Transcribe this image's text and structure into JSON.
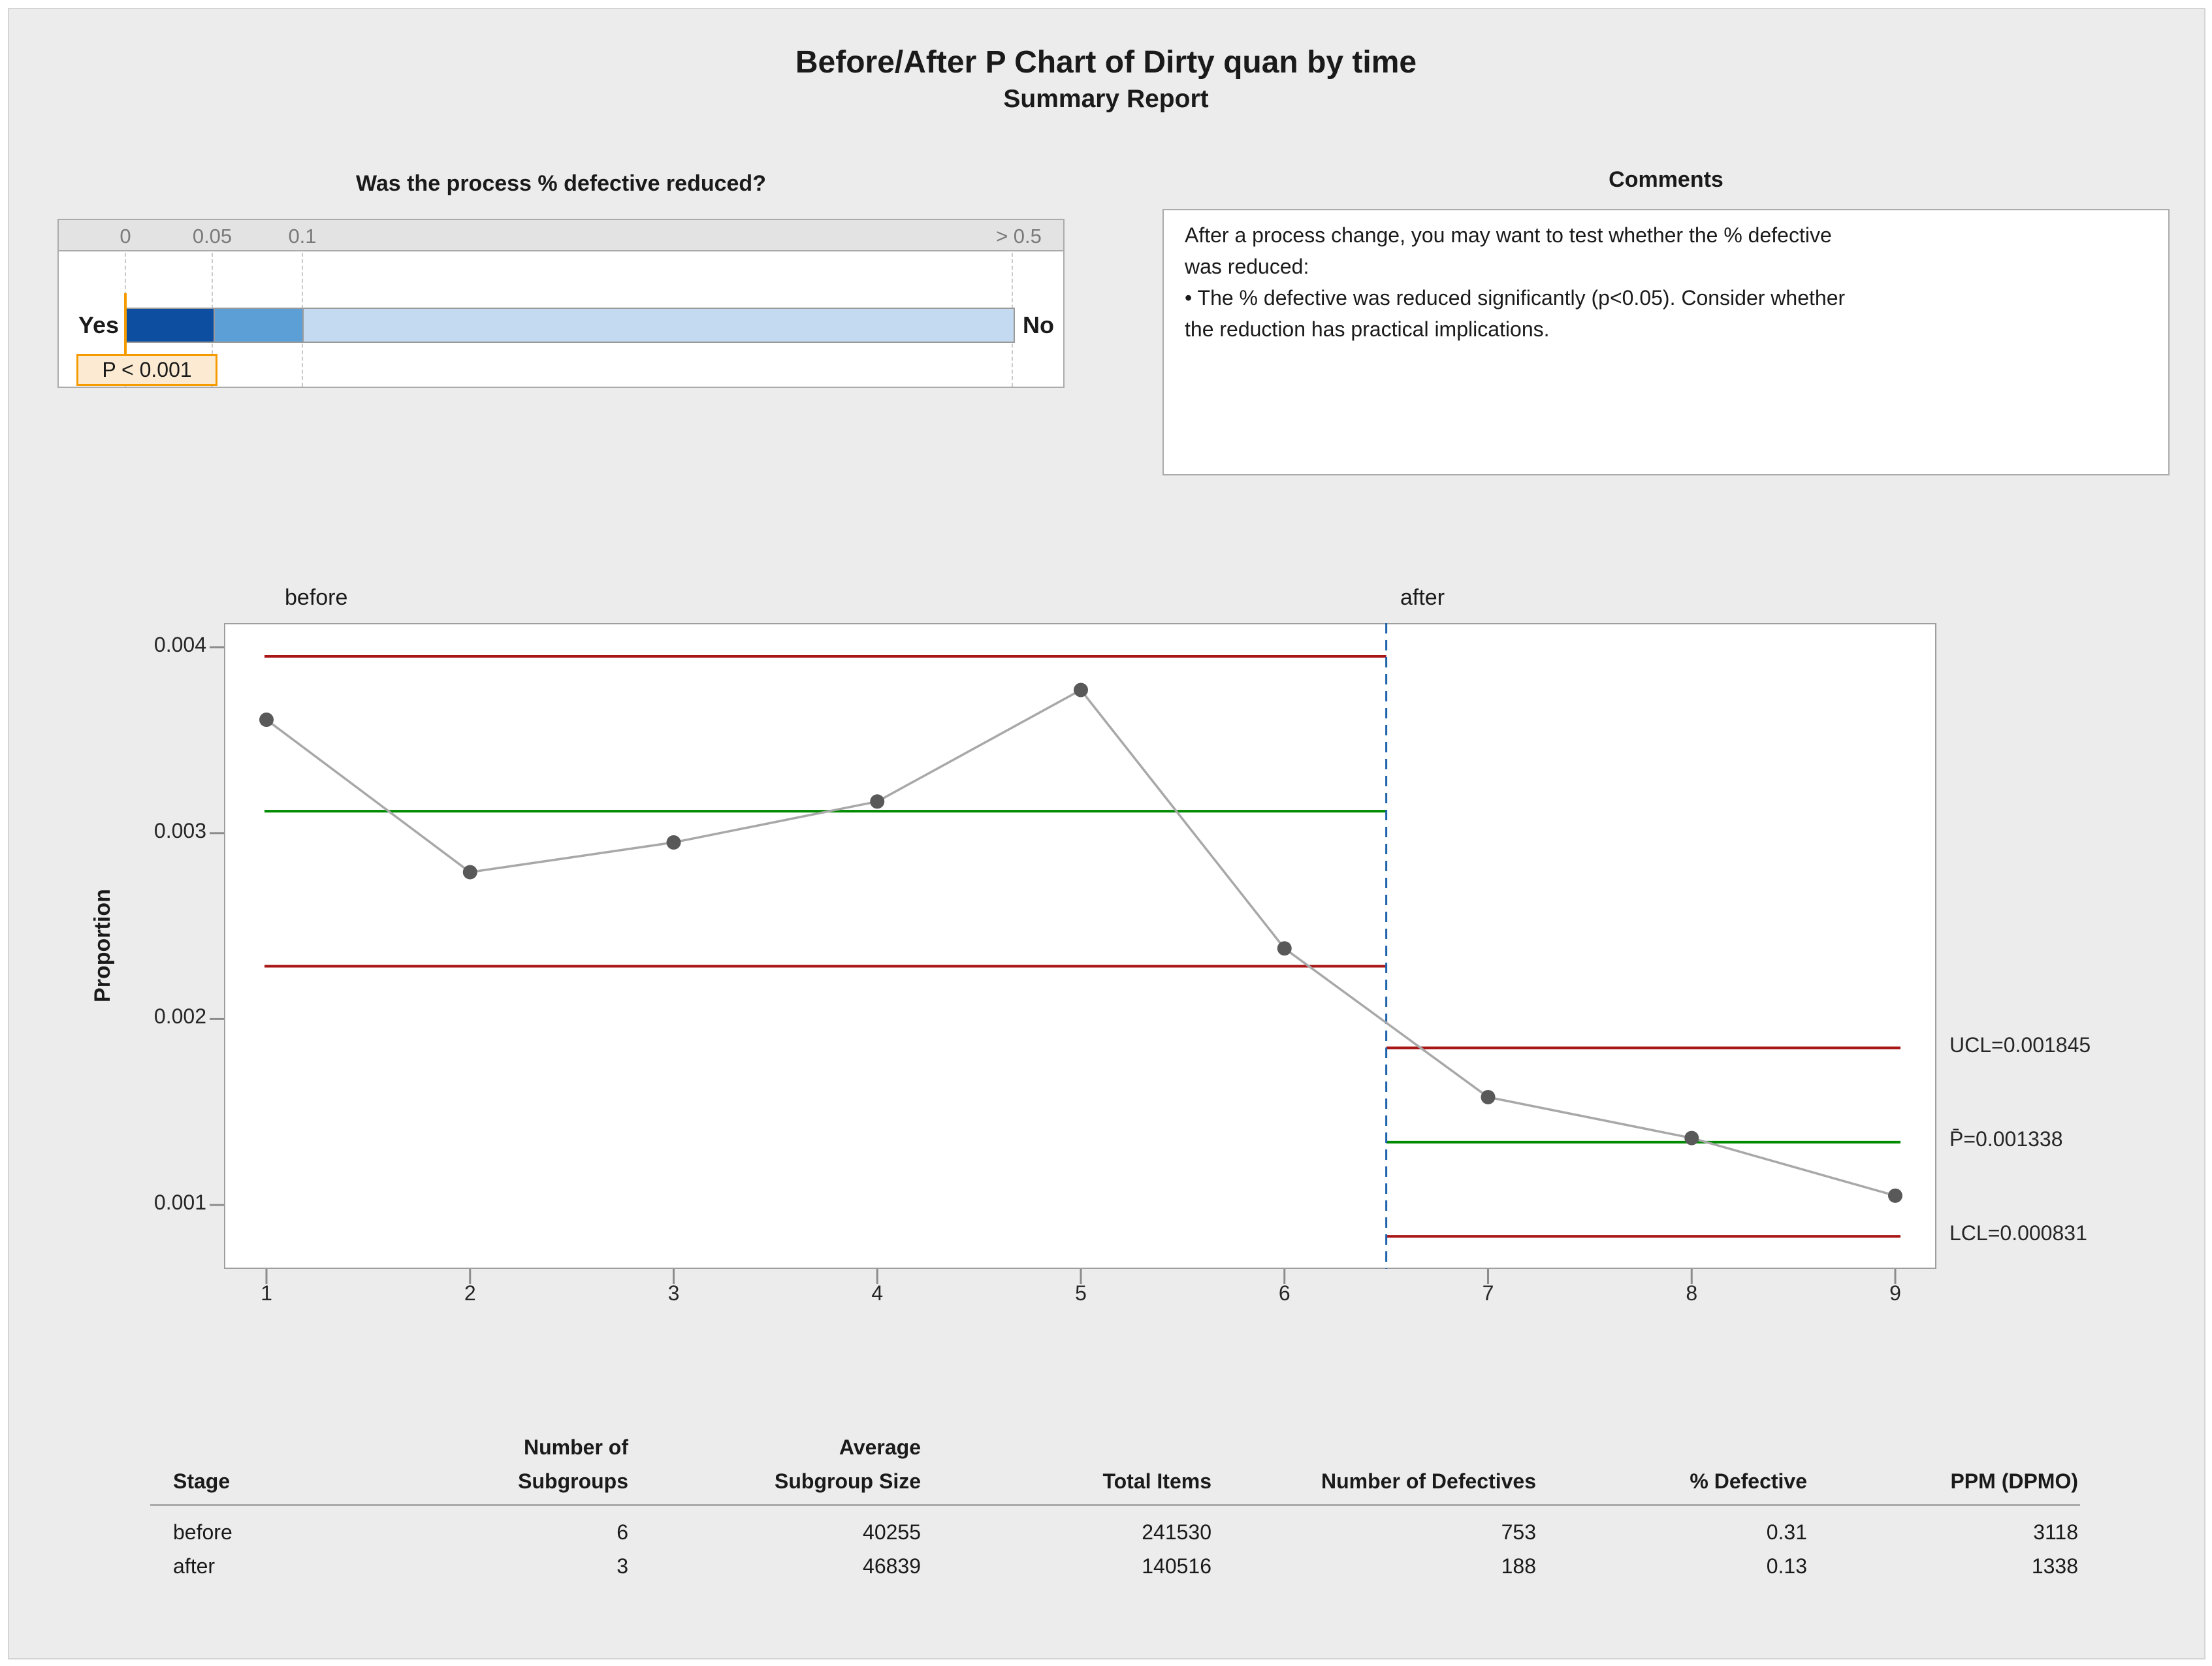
{
  "title": "Before/After P Chart of Dirty quan by time",
  "subtitle": "Summary Report",
  "gauge": {
    "question": "Was the process % defective reduced?",
    "ticks": [
      "0",
      "0.05",
      "0.1",
      "> 0.5"
    ],
    "yes_label": "Yes",
    "no_label": "No",
    "p_annotation": "P < 0.001",
    "colors": {
      "significant": "#0d4ea0",
      "marginal": "#5c9fd6",
      "not_significant": "#c4daf1",
      "marker_orange": "#f59b00",
      "annotation_fill": "#fcebd2"
    }
  },
  "comments": {
    "title": "Comments",
    "lines": [
      "After a process change, you may want to test whether the % defective",
      "was reduced:",
      "•  The % defective was reduced significantly (p<0.05). Consider whether",
      "the reduction has practical implications."
    ]
  },
  "chart_data": {
    "type": "line",
    "title": "",
    "xlabel": "",
    "ylabel": "Proportion",
    "x": [
      1,
      2,
      3,
      4,
      5,
      6,
      7,
      8,
      9
    ],
    "series": [
      {
        "name": "Proportion",
        "values": [
          0.00361,
          0.00279,
          0.00295,
          0.00317,
          0.00377,
          0.00238,
          0.00158,
          0.00136,
          0.00105
        ]
      }
    ],
    "yticks": [
      0.004,
      0.003,
      0.002,
      0.001
    ],
    "ytick_labels": [
      "0.004",
      "0.003",
      "0.002",
      "0.001"
    ],
    "ylim": [
      0.000656,
      0.00413
    ],
    "grid": false,
    "legend": false,
    "stage_boundary_x": 6.5,
    "stages": [
      {
        "name": "before",
        "range": [
          1,
          6
        ],
        "ucl": 0.003951,
        "center": 0.003118,
        "lcl": 0.002284,
        "labels": []
      },
      {
        "name": "after",
        "range": [
          7,
          9
        ],
        "ucl": 0.001845,
        "center": 0.001338,
        "lcl": 0.000831,
        "labels": [
          {
            "text": "UCL=0.001845",
            "value": 0.001845
          },
          {
            "text": "P̄=0.001338",
            "value": 0.001338
          },
          {
            "text": "LCL=0.000831",
            "value": 0.000831
          }
        ]
      }
    ],
    "colors": {
      "limit": "#a81616",
      "center": "#008a00",
      "series_line": "#a8a8a8",
      "marker": "#595959",
      "stage_divider": "#1e63ac"
    }
  },
  "table": {
    "headers": [
      {
        "lines": [
          "",
          "Stage"
        ]
      },
      {
        "lines": [
          "Number of",
          "Subgroups"
        ]
      },
      {
        "lines": [
          "Average",
          "Subgroup Size"
        ]
      },
      {
        "lines": [
          "",
          "Total Items"
        ]
      },
      {
        "lines": [
          "",
          "Number of Defectives"
        ]
      },
      {
        "lines": [
          "",
          "% Defective"
        ]
      },
      {
        "lines": [
          "",
          "PPM (DPMO)"
        ]
      }
    ],
    "rows": [
      [
        "before",
        "6",
        "40255",
        "241530",
        "753",
        "0.31",
        "3118"
      ],
      [
        "after",
        "3",
        "46839",
        "140516",
        "188",
        "0.13",
        "1338"
      ]
    ]
  }
}
